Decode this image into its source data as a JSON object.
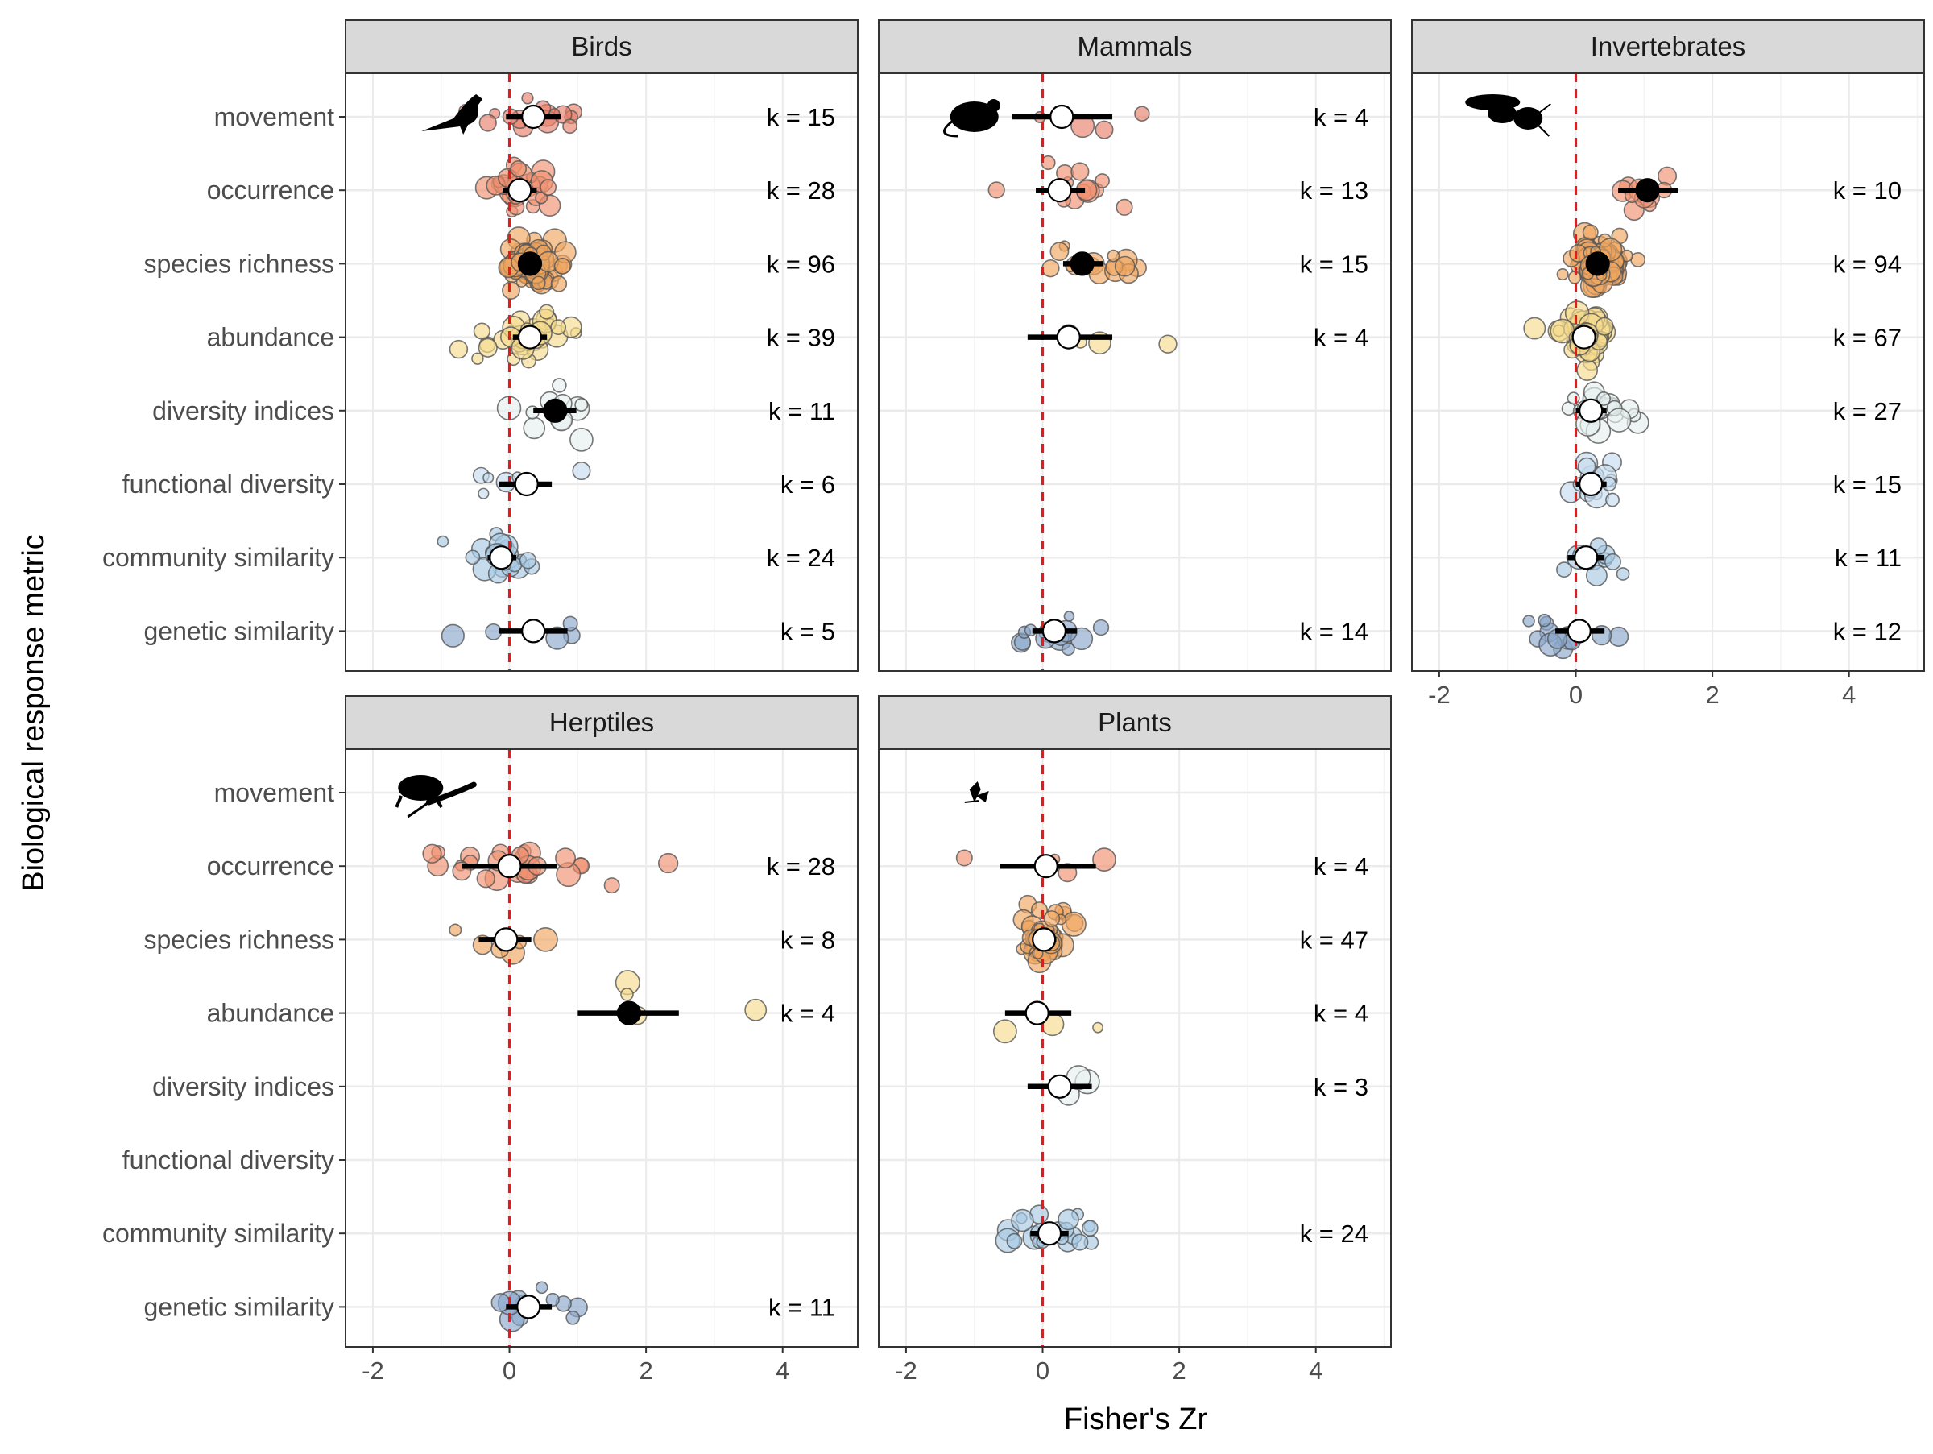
{
  "chart_data": {
    "type": "scatter",
    "x_label": "Fisher's Zr",
    "y_label": "Biological response metric",
    "xlim": [
      -2.4,
      5.1
    ],
    "x_ticks": [
      -2,
      0,
      2,
      4
    ],
    "reference_line_x": 0,
    "metrics": [
      "movement",
      "occurrence",
      "species richness",
      "abundance",
      "diversity indices",
      "functional diversity",
      "community similarity",
      "genetic similarity"
    ],
    "metric_colors": {
      "movement": "#e8806a",
      "occurrence": "#ef9070",
      "species richness": "#f0a65f",
      "abundance": "#f6dc8e",
      "diversity indices": "#e6eff0",
      "functional diversity": "#c5dcee",
      "community similarity": "#a8c9e4",
      "genetic similarity": "#8aa7cb"
    },
    "colors": {
      "reference_line": "#e8191a",
      "estimate_significant": "#000000",
      "estimate_nonsignificant": "#ffffff",
      "strip_background": "#d9d9d9",
      "grid": "#ebebeb"
    },
    "panels": [
      {
        "title": "Birds",
        "icon": "bird-icon",
        "estimates": [
          {
            "metric": "movement",
            "k": "k = 15",
            "est": 0.35,
            "lo": -0.05,
            "hi": 0.75,
            "significant": false
          },
          {
            "metric": "occurrence",
            "k": "k = 28",
            "est": 0.15,
            "lo": -0.1,
            "hi": 0.4,
            "significant": false
          },
          {
            "metric": "species richness",
            "k": "k = 96",
            "est": 0.3,
            "lo": 0.2,
            "hi": 0.42,
            "significant": true
          },
          {
            "metric": "abundance",
            "k": "k = 39",
            "est": 0.3,
            "lo": 0.05,
            "hi": 0.55,
            "significant": false
          },
          {
            "metric": "diversity indices",
            "k": "k = 11",
            "est": 0.67,
            "lo": 0.35,
            "hi": 0.98,
            "significant": true
          },
          {
            "metric": "functional diversity",
            "k": "k = 6",
            "est": 0.25,
            "lo": -0.15,
            "hi": 0.62,
            "significant": false
          },
          {
            "metric": "community similarity",
            "k": "k = 24",
            "est": -0.12,
            "lo": -0.32,
            "hi": 0.1,
            "significant": false
          },
          {
            "metric": "genetic similarity",
            "k": "k = 5",
            "est": 0.35,
            "lo": -0.15,
            "hi": 0.85,
            "significant": false
          }
        ]
      },
      {
        "title": "Mammals",
        "icon": "mouse-icon",
        "estimates": [
          {
            "metric": "movement",
            "k": "k = 4",
            "est": 0.28,
            "lo": -0.45,
            "hi": 1.02,
            "significant": false
          },
          {
            "metric": "occurrence",
            "k": "k = 13",
            "est": 0.25,
            "lo": -0.1,
            "hi": 0.62,
            "significant": false
          },
          {
            "metric": "species richness",
            "k": "k = 15",
            "est": 0.58,
            "lo": 0.3,
            "hi": 0.88,
            "significant": true
          },
          {
            "metric": "abundance",
            "k": "k = 4",
            "est": 0.38,
            "lo": -0.22,
            "hi": 1.02,
            "significant": false
          },
          {
            "metric": "genetic similarity",
            "k": "k = 14",
            "est": 0.17,
            "lo": -0.15,
            "hi": 0.5,
            "significant": false
          }
        ]
      },
      {
        "title": "Invertebrates",
        "icon": "insect-icon",
        "estimates": [
          {
            "metric": "occurrence",
            "k": "k = 10",
            "est": 1.05,
            "lo": 0.62,
            "hi": 1.5,
            "significant": true
          },
          {
            "metric": "species richness",
            "k": "k = 94",
            "est": 0.32,
            "lo": 0.2,
            "hi": 0.45,
            "significant": true
          },
          {
            "metric": "abundance",
            "k": "k = 67",
            "est": 0.12,
            "lo": 0.02,
            "hi": 0.24,
            "significant": false
          },
          {
            "metric": "diversity indices",
            "k": "k = 27",
            "est": 0.22,
            "lo": 0.0,
            "hi": 0.45,
            "significant": false
          },
          {
            "metric": "functional diversity",
            "k": "k = 15",
            "est": 0.22,
            "lo": 0.0,
            "hi": 0.45,
            "significant": false
          },
          {
            "metric": "community similarity",
            "k": "k = 11",
            "est": 0.15,
            "lo": -0.12,
            "hi": 0.42,
            "significant": false
          },
          {
            "metric": "genetic similarity",
            "k": "k = 12",
            "est": 0.05,
            "lo": -0.3,
            "hi": 0.42,
            "significant": false
          }
        ]
      },
      {
        "title": "Herptiles",
        "icon": "frog-lizard-icon",
        "estimates": [
          {
            "metric": "occurrence",
            "k": "k = 28",
            "est": 0.0,
            "lo": -0.7,
            "hi": 0.7,
            "significant": false
          },
          {
            "metric": "species richness",
            "k": "k = 8",
            "est": -0.05,
            "lo": -0.45,
            "hi": 0.32,
            "significant": false
          },
          {
            "metric": "abundance",
            "k": "k = 4",
            "est": 1.75,
            "lo": 1.0,
            "hi": 2.48,
            "significant": true
          },
          {
            "metric": "genetic similarity",
            "k": "k = 11",
            "est": 0.28,
            "lo": -0.05,
            "hi": 0.62,
            "significant": false
          }
        ]
      },
      {
        "title": "Plants",
        "icon": "plant-icon",
        "estimates": [
          {
            "metric": "occurrence",
            "k": "k = 4",
            "est": 0.05,
            "lo": -0.62,
            "hi": 0.78,
            "significant": false
          },
          {
            "metric": "species richness",
            "k": "k = 47",
            "est": 0.02,
            "lo": -0.15,
            "hi": 0.2,
            "significant": false
          },
          {
            "metric": "abundance",
            "k": "k = 4",
            "est": -0.08,
            "lo": -0.55,
            "hi": 0.42,
            "significant": false
          },
          {
            "metric": "diversity indices",
            "k": "k = 3",
            "est": 0.25,
            "lo": -0.22,
            "hi": 0.72,
            "significant": false
          },
          {
            "metric": "community similarity",
            "k": "k = 24",
            "est": 0.1,
            "lo": -0.18,
            "hi": 0.38,
            "significant": false
          }
        ]
      }
    ]
  }
}
